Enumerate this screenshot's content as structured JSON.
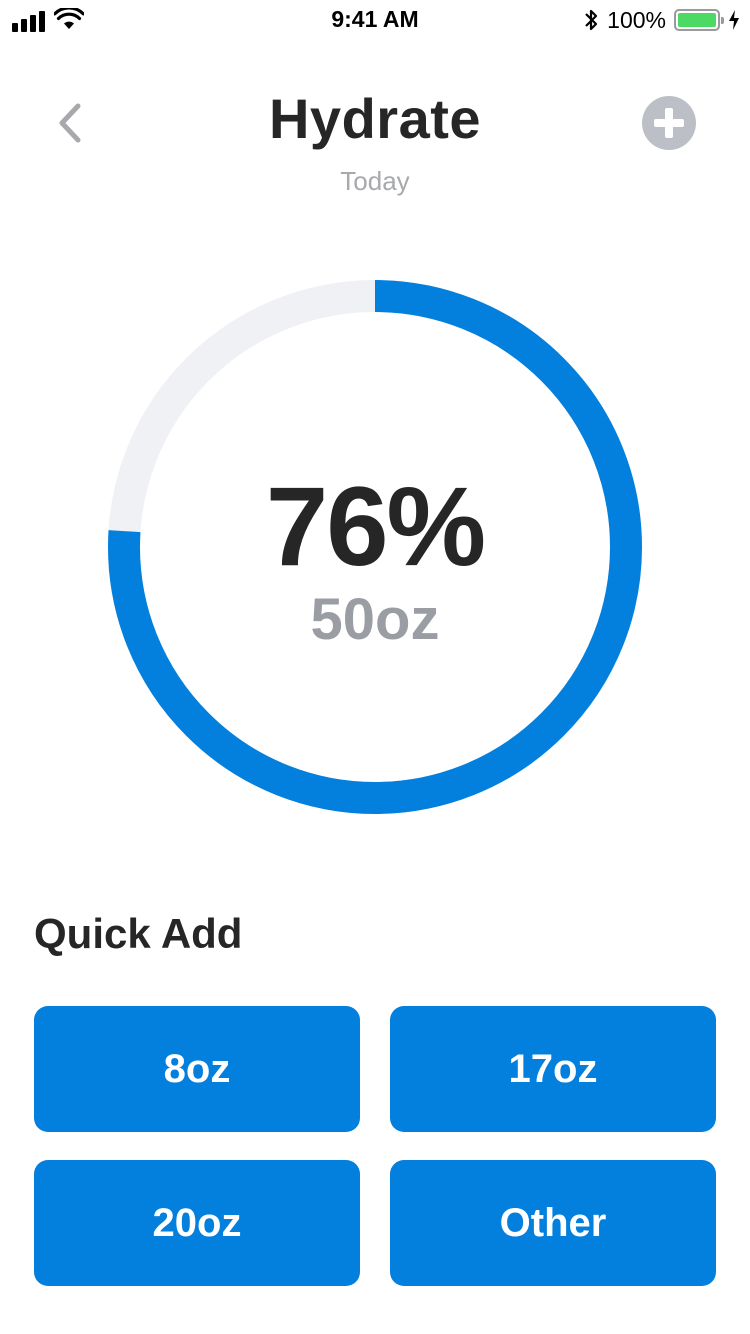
{
  "status_bar": {
    "time": "9:41 AM",
    "battery_percent": "100%",
    "signal_bars": 4,
    "icons": [
      "signal-icon",
      "wifi-icon",
      "bluetooth-icon",
      "battery-icon",
      "charging-icon"
    ]
  },
  "header": {
    "title": "Hydrate",
    "subtitle": "Today",
    "back_icon": "chevron-left-icon",
    "add_icon": "plus-circle-icon"
  },
  "progress": {
    "percent_label": "76%",
    "amount_label": "50oz",
    "fraction": 0.76
  },
  "quick_add": {
    "title": "Quick Add",
    "buttons": [
      {
        "label": "8oz"
      },
      {
        "label": "17oz"
      },
      {
        "label": "20oz"
      },
      {
        "label": "Other"
      }
    ]
  },
  "colors": {
    "accent": "#0380dd",
    "ring_track": "#f0f1f5",
    "title_text": "#262626",
    "muted_text": "#9a9da3",
    "add_button": "#bcc0c6",
    "battery_fill": "#4cd964"
  }
}
